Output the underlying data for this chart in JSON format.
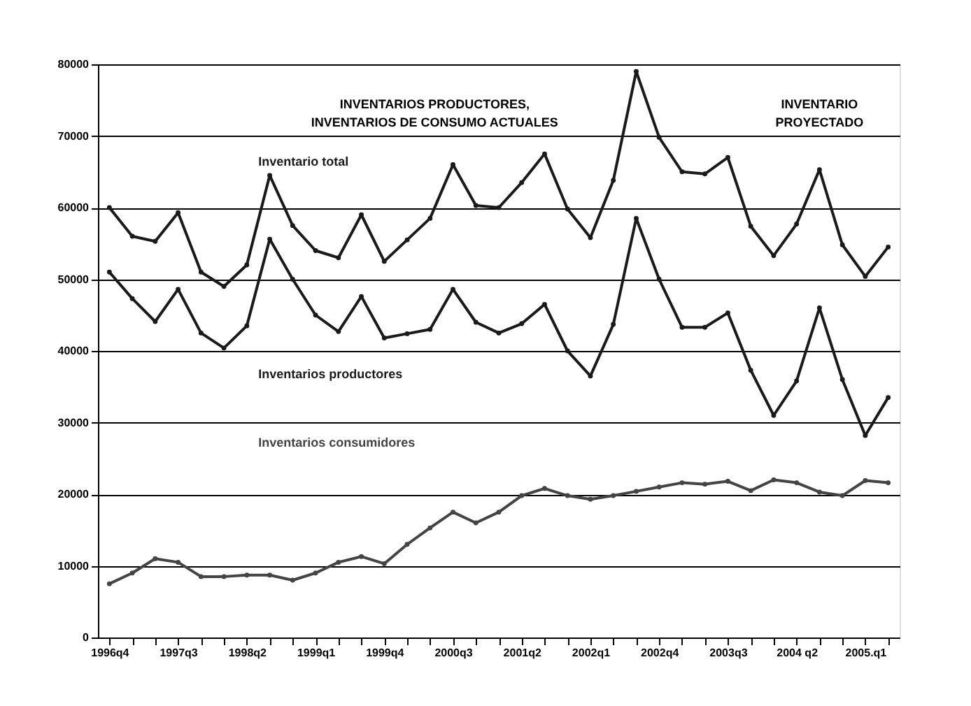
{
  "chart_data": {
    "type": "line",
    "categories": [
      "1996q4",
      null,
      null,
      "1997q3",
      null,
      null,
      "1998q2",
      null,
      null,
      "1999q1",
      null,
      null,
      "1999q4",
      null,
      null,
      "2000q3",
      null,
      null,
      "2001q2",
      null,
      null,
      "2002q1",
      null,
      null,
      "2002q4",
      null,
      null,
      "2003q3",
      null,
      null,
      "2004 q2",
      null,
      null,
      "2005.q1",
      null
    ],
    "series": [
      {
        "name": "Inventario total",
        "color": "#1a1a1a",
        "values": [
          60000,
          56000,
          55300,
          59300,
          51000,
          49000,
          52000,
          64500,
          57500,
          54000,
          53000,
          59000,
          52500,
          55500,
          58500,
          66000,
          60300,
          60000,
          63500,
          67500,
          59800,
          55800,
          63800,
          79000,
          69800,
          65000,
          64700,
          67000,
          57400,
          53300,
          57700,
          65300,
          54800,
          50400,
          54500
        ]
      },
      {
        "name": "Inventarios productores",
        "color": "#1a1a1a",
        "values": [
          51000,
          47300,
          44100,
          48600,
          42500,
          40400,
          43500,
          55600,
          50000,
          45000,
          42700,
          47600,
          41800,
          42400,
          43000,
          48600,
          44000,
          42500,
          43800,
          46500,
          40000,
          36500,
          43700,
          58500,
          50000,
          43300,
          43300,
          45300,
          37300,
          31000,
          35800,
          46000,
          36000,
          28200,
          33500
        ]
      },
      {
        "name": "Inventarios consumidores",
        "color": "#444444",
        "values": [
          7500,
          9000,
          11000,
          10500,
          8500,
          8500,
          8700,
          8700,
          8000,
          9000,
          10500,
          11300,
          10300,
          13000,
          15300,
          17500,
          16000,
          17500,
          19800,
          20800,
          19800,
          19300,
          19800,
          20400,
          21000,
          21600,
          21400,
          21800,
          20500,
          22000,
          21600,
          20300,
          19800,
          21900,
          21600
        ]
      }
    ],
    "ylim": [
      0,
      80000
    ],
    "yticks": [
      0,
      10000,
      20000,
      30000,
      40000,
      50000,
      60000,
      70000,
      80000
    ],
    "grid": "y",
    "marker": "circle",
    "line_style": "solid",
    "annotations": [
      "INVENTARIOS PRODUCTORES,\nINVENTARIOS DE CONSUMO ACTUALES",
      "INVENTARIO\nPROYECTADO"
    ]
  }
}
